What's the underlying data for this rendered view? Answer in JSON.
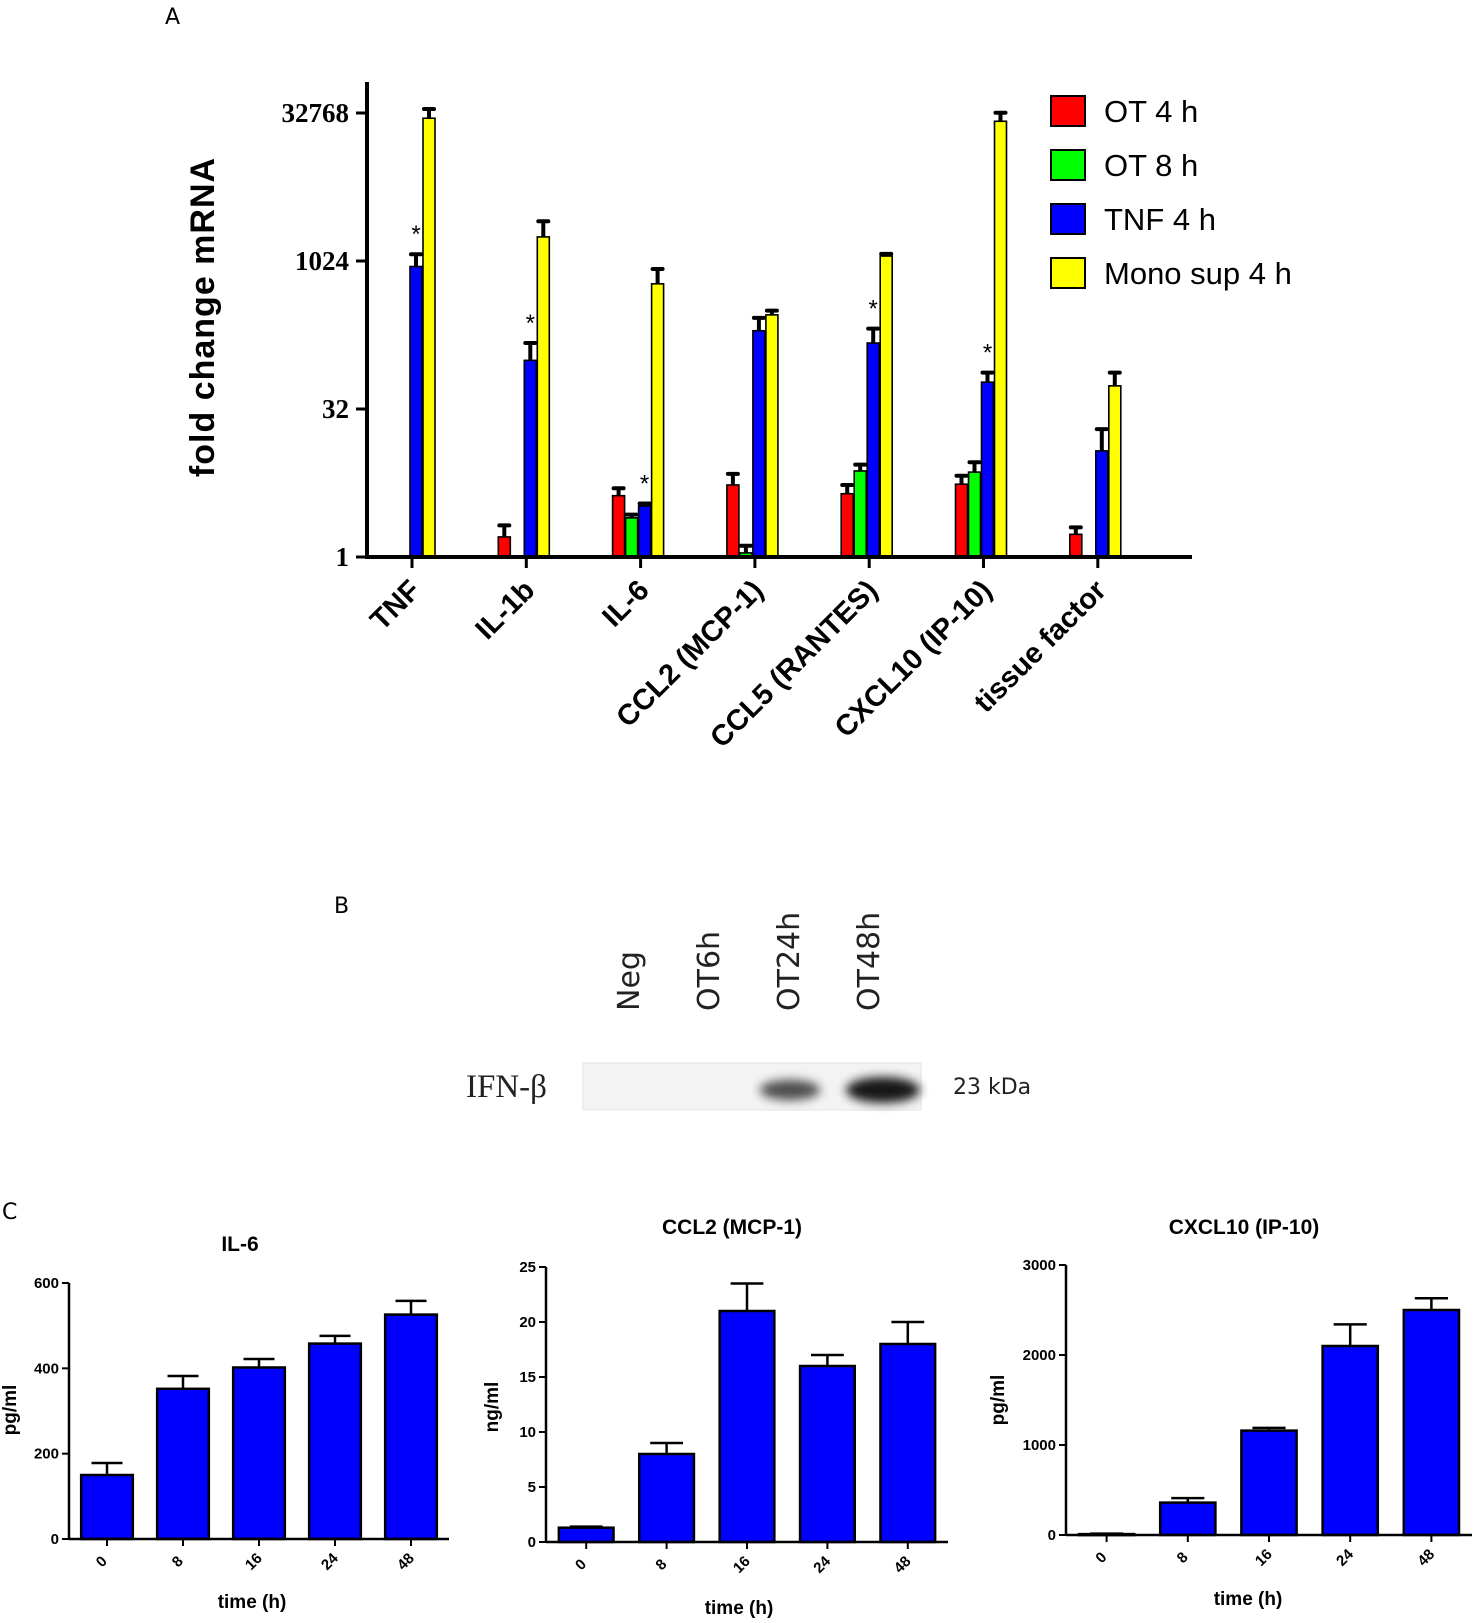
{
  "panels": {
    "a": "A",
    "b": "B",
    "c": "C"
  },
  "colors": {
    "ot4": "#ff0000",
    "ot8": "#00ff00",
    "tnf4": "#0000ff",
    "mono4": "#ffff00",
    "panel_c_bar": "#0000ff"
  },
  "chart_data": [
    {
      "id": "A",
      "type": "bar",
      "scale": "log2",
      "ylabel": "fold change mRNA",
      "yticks": [
        1,
        32,
        1024,
        32768
      ],
      "ytick_labels": [
        "1",
        "32",
        "1024",
        "32768"
      ],
      "ylim": [
        1,
        32768
      ],
      "categories": [
        "TNF",
        "IL-1b",
        "IL-6",
        "CCL2 (MCP-1)",
        "CCL5 (RANTES)",
        "CXCL10 (IP-10)",
        "tissue factor"
      ],
      "series": [
        {
          "name": "OT 4 h",
          "color_key": "ot4",
          "values": [
            null,
            1.6,
            4.2,
            5.4,
            4.4,
            5.5,
            1.7
          ],
          "errors": [
            null,
            0.5,
            0.8,
            1.6,
            1.0,
            1.2,
            0.3
          ]
        },
        {
          "name": "OT 8 h",
          "color_key": "ot8",
          "values": [
            null,
            null,
            2.5,
            1.1,
            7.5,
            7.3,
            null
          ],
          "errors": [
            null,
            null,
            0.2,
            0.2,
            1.2,
            1.9,
            null
          ]
        },
        {
          "name": "TNF 4 h",
          "color_key": "tnf4",
          "values": [
            900,
            100,
            3.3,
            200,
            150,
            60,
            12
          ],
          "errors": [
            300,
            50,
            0.2,
            70,
            60,
            15,
            8
          ]
        },
        {
          "name": "Mono sup 4 h",
          "color_key": "mono4",
          "values": [
            29000,
            1800,
            600,
            290,
            1150,
            27000,
            55
          ],
          "errors": [
            7000,
            800,
            250,
            30,
            60,
            6000,
            20
          ]
        }
      ],
      "annotations": [
        {
          "category": "TNF",
          "series": "TNF 4 h",
          "text": "*"
        },
        {
          "category": "IL-1b",
          "series": "TNF 4 h",
          "text": "*"
        },
        {
          "category": "IL-6",
          "series": "TNF 4 h",
          "text": "*"
        },
        {
          "category": "CCL5 (RANTES)",
          "series": "TNF 4 h",
          "text": "*"
        },
        {
          "category": "CXCL10 (IP-10)",
          "series": "TNF 4 h",
          "text": "*"
        }
      ],
      "legend_position": "top-right"
    },
    {
      "id": "C1",
      "type": "bar",
      "title": "IL-6",
      "categories": [
        "0",
        "8",
        "16",
        "24",
        "48"
      ],
      "values": [
        150,
        352,
        402,
        458,
        526
      ],
      "errors": [
        28,
        30,
        20,
        18,
        32
      ],
      "ylim": [
        0,
        600
      ],
      "yticks": [
        0,
        200,
        400,
        600
      ],
      "ylabel": "pg/ml",
      "xlabel": "time (h)"
    },
    {
      "id": "C2",
      "type": "bar",
      "title": "CCL2 (MCP-1)",
      "categories": [
        "0",
        "8",
        "16",
        "24",
        "48"
      ],
      "values": [
        1.3,
        8.0,
        21.0,
        16.0,
        18.0
      ],
      "errors": [
        0.1,
        1.0,
        2.5,
        1.0,
        2.0
      ],
      "ylim": [
        0,
        25
      ],
      "yticks": [
        0,
        5,
        10,
        15,
        20,
        25
      ],
      "ylabel": "ng/ml",
      "xlabel": "time (h)"
    },
    {
      "id": "C3",
      "type": "bar",
      "title": "CXCL10 (IP-10)",
      "categories": [
        "0",
        "8",
        "16",
        "24",
        "48"
      ],
      "values": [
        10,
        360,
        1160,
        2100,
        2500
      ],
      "errors": [
        5,
        50,
        30,
        240,
        130
      ],
      "ylim": [
        0,
        3000
      ],
      "yticks": [
        0,
        1000,
        2000,
        3000
      ],
      "ylabel": "pg/ml",
      "xlabel": "time (h)"
    }
  ],
  "blot": {
    "lanes": [
      "Neg",
      "OT6h",
      "OT24h",
      "OT48h"
    ],
    "protein": "IFN-β",
    "size": "23 kDa",
    "band_intensity": [
      0,
      0,
      0.6,
      1.0
    ]
  }
}
